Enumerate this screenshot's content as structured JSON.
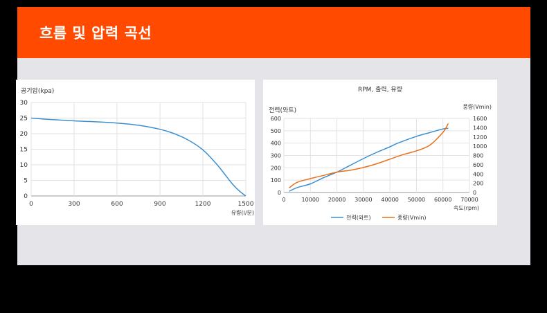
{
  "banner": {
    "title": "흐름 및 압력 곡선",
    "color": "#ff4a00"
  },
  "chart_data": [
    {
      "type": "line",
      "ylabel": "공기압(kpa)",
      "xlabel": "유량(l/분)",
      "xlim": [
        0,
        1500
      ],
      "ylim": [
        0,
        30
      ],
      "xticks": [
        0,
        300,
        600,
        900,
        1200,
        1500
      ],
      "yticks": [
        0,
        5,
        10,
        15,
        20,
        25,
        30
      ],
      "grid": true,
      "series": [
        {
          "color": "#3b8fd0",
          "x": [
            0,
            150,
            300,
            450,
            600,
            750,
            900,
            1000,
            1100,
            1200,
            1300,
            1400,
            1450,
            1500
          ],
          "y": [
            25.0,
            24.5,
            24.1,
            23.8,
            23.4,
            22.7,
            21.4,
            20.0,
            17.9,
            14.8,
            10.0,
            4.2,
            1.8,
            0
          ]
        }
      ]
    },
    {
      "type": "line",
      "title": "RPM, 출력, 유량",
      "ylabel": "전력(와트)",
      "y2label": "풍량(Vmin)",
      "xlabel": "속도(rpm)",
      "xlim": [
        0,
        70000
      ],
      "ylim": [
        0,
        600
      ],
      "y2lim": [
        0,
        1600
      ],
      "xticks": [
        0,
        10000,
        20000,
        30000,
        40000,
        50000,
        60000,
        70000
      ],
      "yticks": [
        0,
        100,
        200,
        300,
        400,
        500,
        600
      ],
      "y2ticks": [
        0,
        200,
        400,
        600,
        800,
        1000,
        1200,
        1400,
        1600
      ],
      "legend_position": "bottom",
      "grid": true,
      "series": [
        {
          "name": "전력(와트)",
          "axis": "left",
          "color": "#3b8fd0",
          "x": [
            2000,
            5000,
            10000,
            15000,
            20000,
            25000,
            30000,
            35000,
            40000,
            43000,
            50000,
            55000,
            60000,
            62000
          ],
          "y": [
            10,
            40,
            70,
            120,
            165,
            220,
            275,
            325,
            370,
            400,
            455,
            485,
            515,
            520
          ]
        },
        {
          "name": "풍량(Vmin)",
          "axis": "right",
          "color": "#e8701a",
          "x": [
            2000,
            5000,
            10000,
            15000,
            20000,
            25000,
            30000,
            35000,
            40000,
            45000,
            50000,
            55000,
            60000,
            62000
          ],
          "y": [
            100,
            220,
            300,
            370,
            440,
            480,
            540,
            620,
            720,
            820,
            900,
            1020,
            1300,
            1490
          ]
        }
      ]
    }
  ]
}
